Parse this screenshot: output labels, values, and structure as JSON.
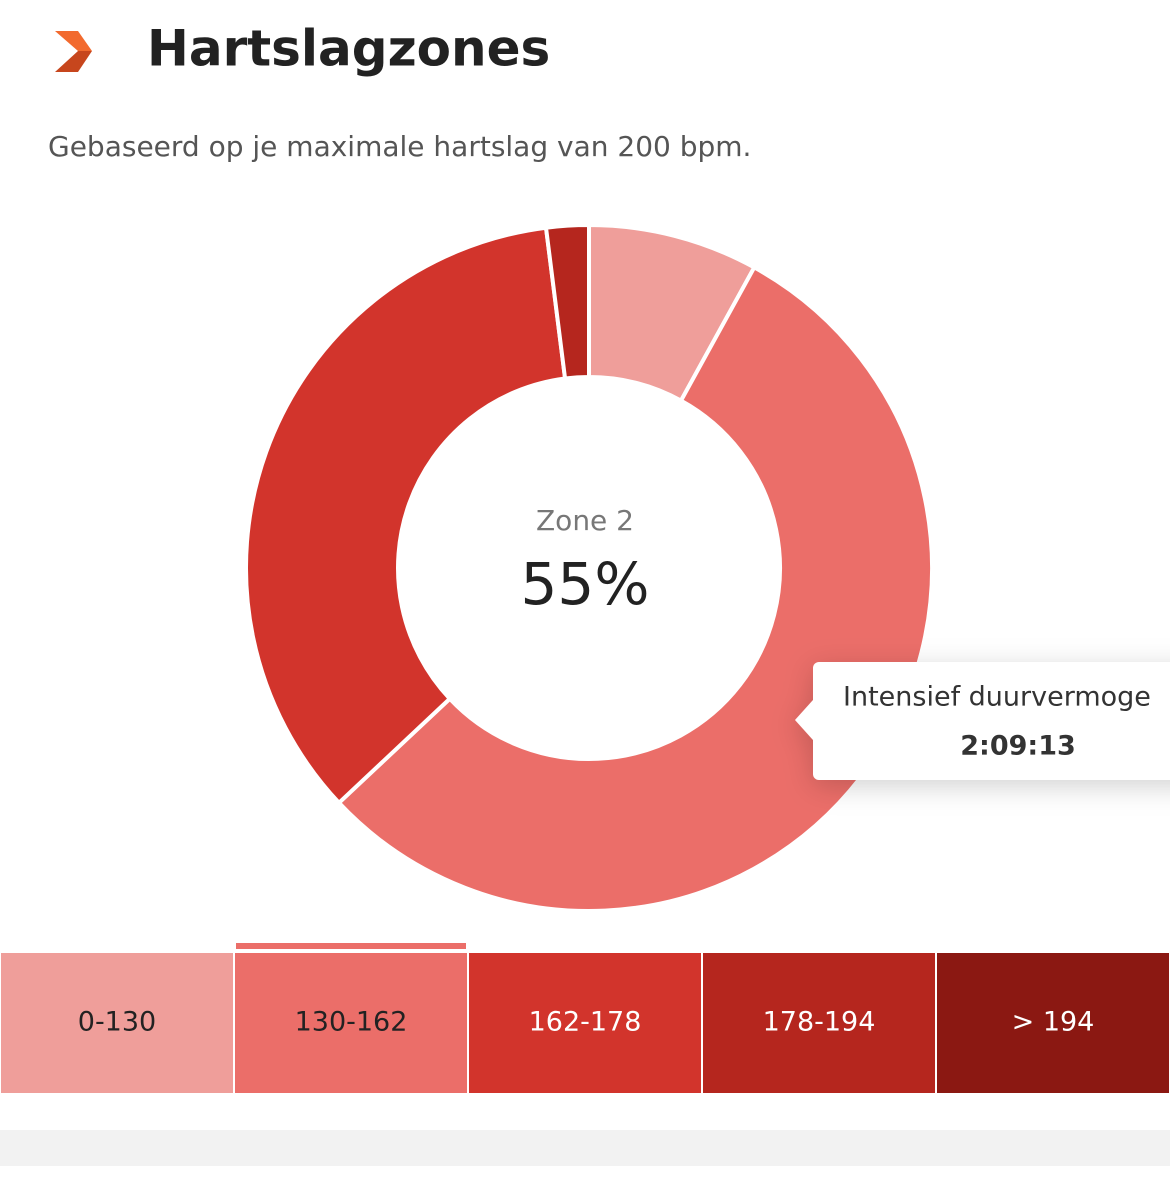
{
  "header": {
    "title": "Hartslagzones",
    "subtitle": "Gebaseerd op je maximale hartslag van 200 bpm."
  },
  "chart_data": {
    "type": "pie",
    "donut": true,
    "categories": [
      "0-130",
      "130-162",
      "162-178",
      "178-194",
      "> 194"
    ],
    "values": [
      8,
      55,
      35,
      2,
      0
    ],
    "colors": [
      "#ef9e9a",
      "#eb6e69",
      "#d2342c",
      "#b5261e",
      "#8b1812"
    ],
    "selected": 1,
    "center_label": "Zone 2",
    "value_labels": [
      null,
      "55%",
      null,
      null,
      null
    ],
    "tooltip": {
      "title": "Intensief duurvermoge",
      "value": "2:09:13"
    }
  }
}
